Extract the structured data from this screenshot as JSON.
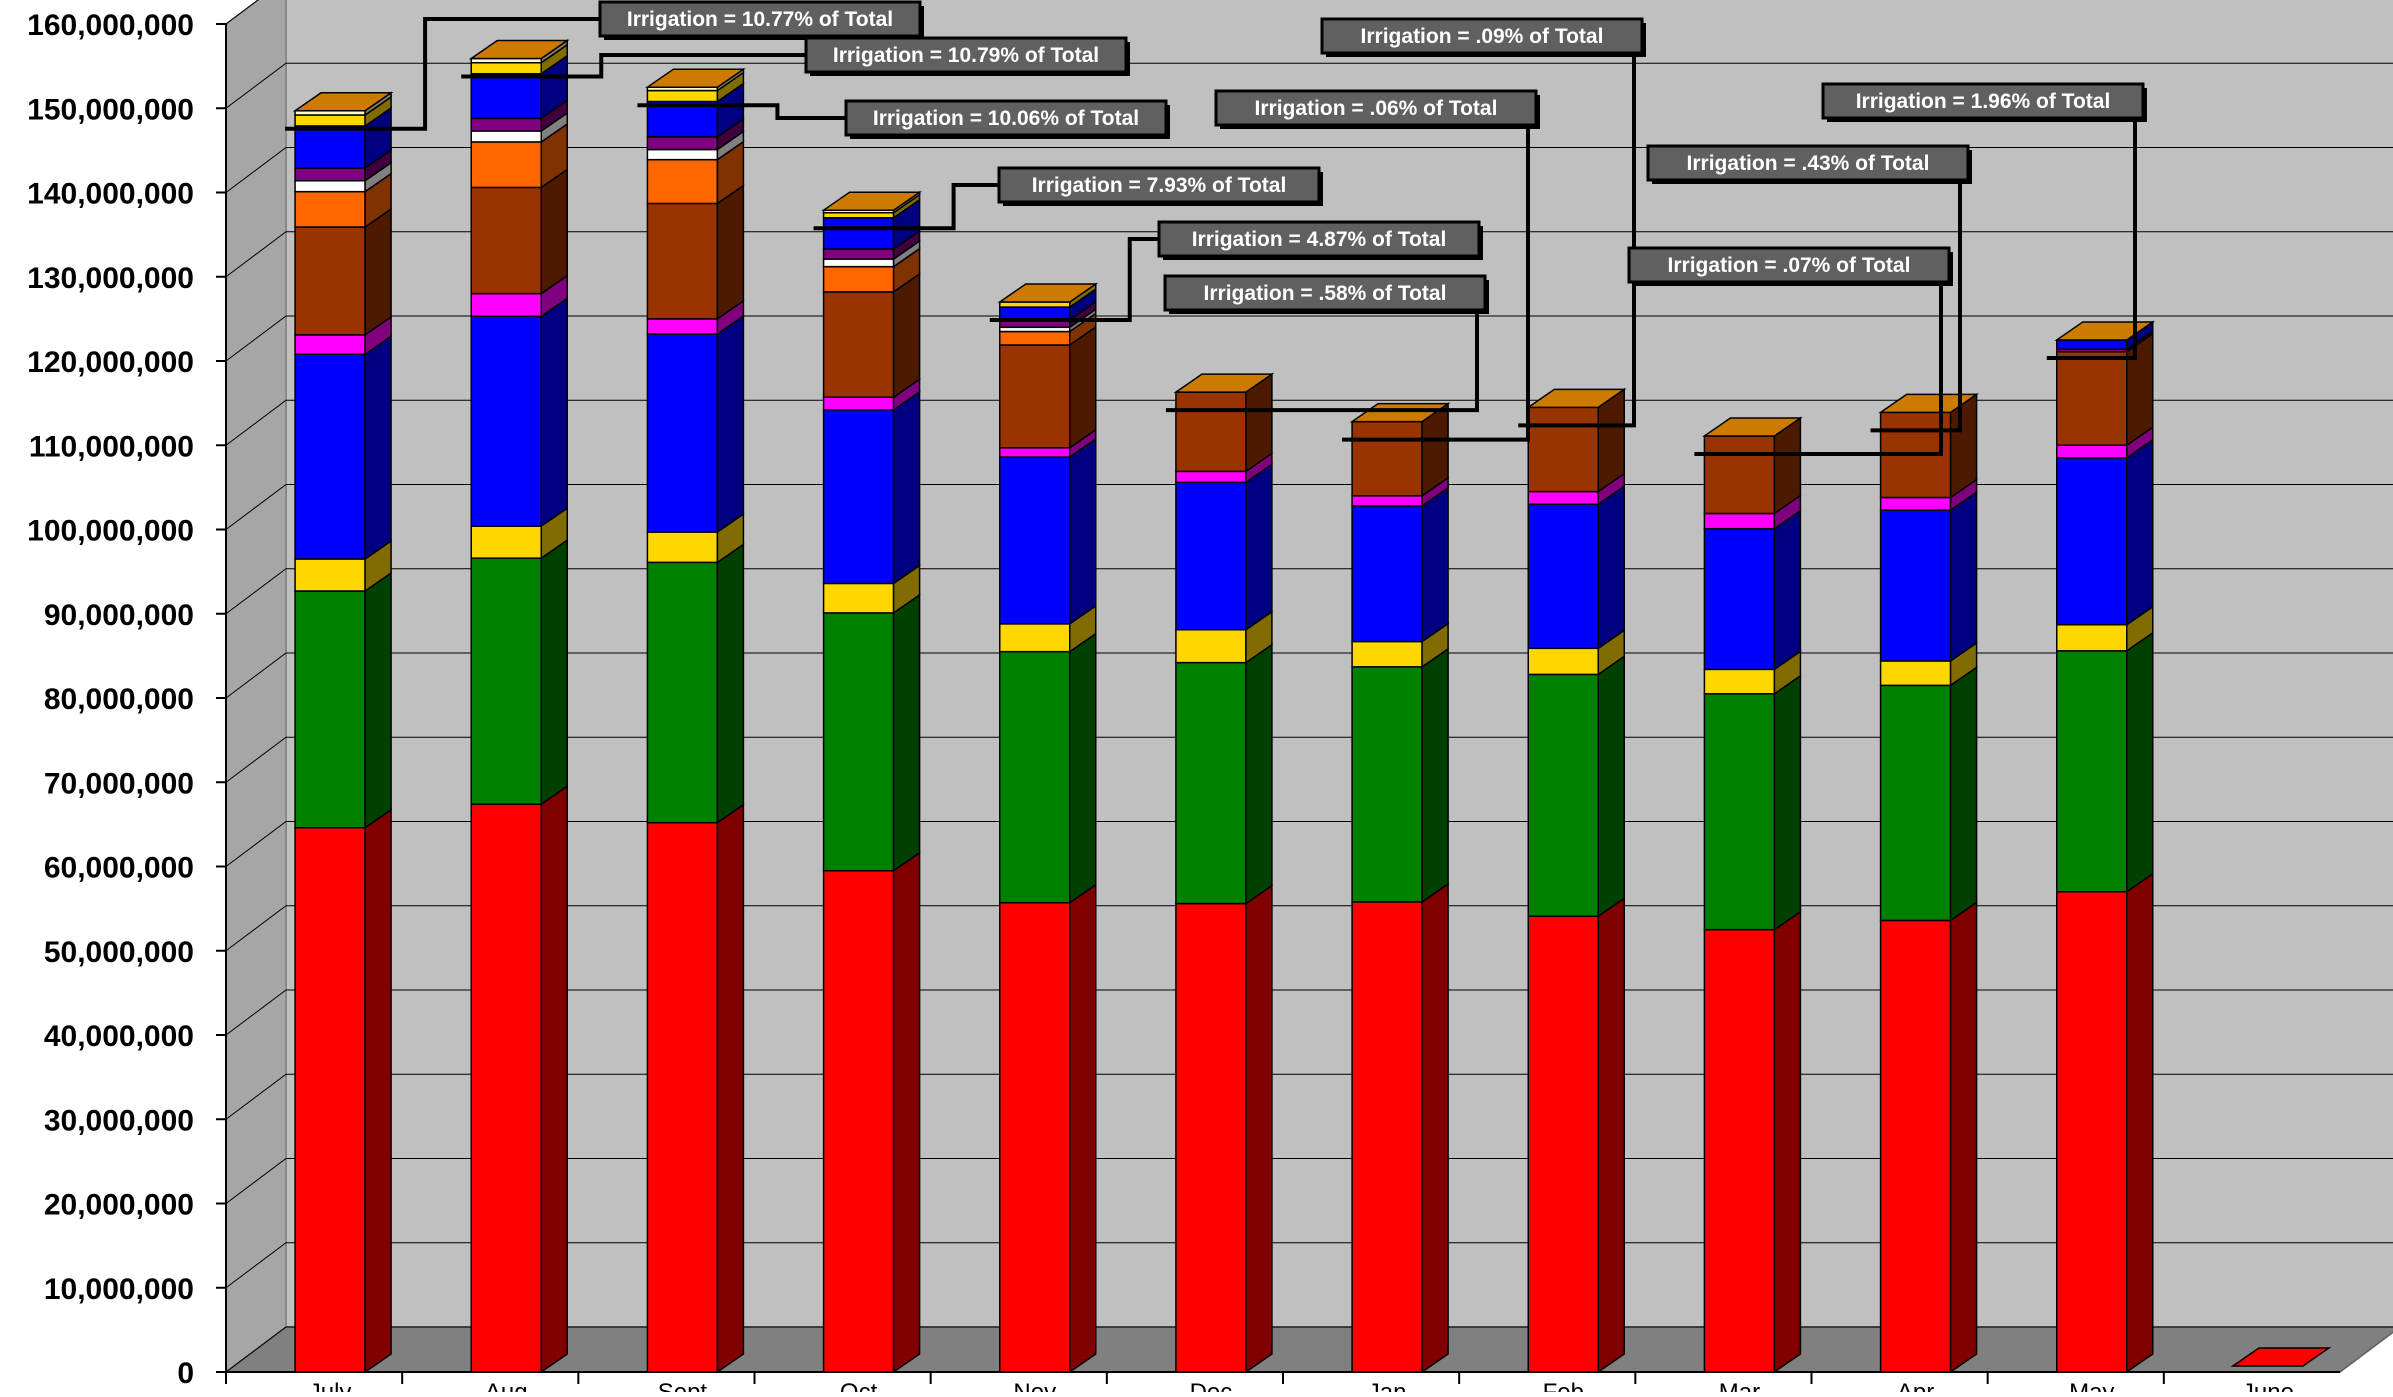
{
  "chart_data": {
    "type": "bar",
    "stacked": true,
    "three_d": true,
    "title": "",
    "xlabel": "",
    "ylabel": "",
    "ylim": [
      0,
      160000000
    ],
    "y_ticks": [
      "0",
      "10,000,000",
      "20,000,000",
      "30,000,000",
      "40,000,000",
      "50,000,000",
      "60,000,000",
      "70,000,000",
      "80,000,000",
      "90,000,000",
      "100,000,000",
      "110,000,000",
      "120,000,000",
      "130,000,000",
      "140,000,000",
      "150,000,000",
      "160,000,000"
    ],
    "y_tick_values": [
      0,
      10000000,
      20000000,
      30000000,
      40000000,
      50000000,
      60000000,
      70000000,
      80000000,
      90000000,
      100000000,
      110000000,
      120000000,
      130000000,
      140000000,
      150000000,
      160000000
    ],
    "grid": true,
    "legend": "none",
    "categories": [
      "July",
      "Aug",
      "Sept",
      "Oct",
      "Nov",
      "Dec",
      "Jan",
      "Feb",
      "Mar",
      "Apr",
      "May",
      "June"
    ],
    "series": [
      {
        "color": "#ff0000",
        "values": [
          64600000,
          67400000,
          65200000,
          59500000,
          55700000,
          55600000,
          55800000,
          54100000,
          52500000,
          53600000,
          57000000,
          0
        ]
      },
      {
        "color": "#008000",
        "values": [
          28100000,
          29200000,
          30900000,
          30600000,
          29800000,
          28600000,
          27900000,
          28700000,
          28000000,
          27900000,
          28600000,
          0
        ]
      },
      {
        "color": "#ffd700",
        "values": [
          3800000,
          3800000,
          3600000,
          3500000,
          3300000,
          3900000,
          3000000,
          3100000,
          2900000,
          2900000,
          3100000,
          0
        ]
      },
      {
        "color": "#0000ff",
        "values": [
          24300000,
          24900000,
          23500000,
          20600000,
          19800000,
          17500000,
          16100000,
          17100000,
          16700000,
          17900000,
          19800000,
          0
        ]
      },
      {
        "color": "#ff00ff",
        "values": [
          2300000,
          2700000,
          1800000,
          1500000,
          1100000,
          1300000,
          1200000,
          1500000,
          1800000,
          1500000,
          1500000,
          0
        ]
      },
      {
        "color": "#993300",
        "values": [
          12800000,
          12600000,
          13700000,
          12500000,
          12200000,
          9400000,
          8800000,
          10000000,
          9200000,
          10100000,
          11100000,
          0
        ]
      },
      {
        "color": "#ff6600",
        "values": [
          4200000,
          5400000,
          5200000,
          3000000,
          1600000,
          0,
          0,
          0,
          0,
          0,
          0,
          0
        ]
      },
      {
        "color": "#ffffff",
        "values": [
          1300000,
          1300000,
          1200000,
          900000,
          500000,
          0,
          0,
          0,
          0,
          0,
          0,
          0
        ]
      },
      {
        "color": "#800080",
        "values": [
          1500000,
          1500000,
          1500000,
          1200000,
          900000,
          0,
          0,
          0,
          0,
          0,
          300000,
          0
        ]
      },
      {
        "color": "#0000ff",
        "values": [
          5000000,
          5300000,
          4200000,
          3700000,
          1500000,
          0,
          0,
          0,
          0,
          0,
          1100000,
          0
        ]
      },
      {
        "color": "#ffd700",
        "values": [
          1300000,
          1300000,
          1300000,
          600000,
          600000,
          0,
          0,
          0,
          0,
          0,
          0,
          0
        ]
      },
      {
        "color": "#fffacd",
        "values": [
          500000,
          500000,
          400000,
          300000,
          0,
          0,
          0,
          0,
          0,
          0,
          0,
          0
        ]
      }
    ],
    "annotations": [
      {
        "text": "Irrigation = 10.77% of Total",
        "category": "July"
      },
      {
        "text": "Irrigation = 10.79% of Total",
        "category": "Aug"
      },
      {
        "text": "Irrigation = 10.06% of Total",
        "category": "Sept"
      },
      {
        "text": "Irrigation = 7.93% of Total",
        "category": "Oct"
      },
      {
        "text": "Irrigation = 4.87% of Total",
        "category": "Nov"
      },
      {
        "text": "Irrigation = .58% of Total",
        "category": "Dec"
      },
      {
        "text": "Irrigation = .06% of Total",
        "category": "Jan"
      },
      {
        "text": "Irrigation = .09% of Total",
        "category": "Feb"
      },
      {
        "text": "Irrigation = .07% of Total",
        "category": "Mar"
      },
      {
        "text": "Irrigation = .43% of Total",
        "category": "Apr"
      },
      {
        "text": "Irrigation = 1.96% of Total",
        "category": "May"
      }
    ]
  }
}
